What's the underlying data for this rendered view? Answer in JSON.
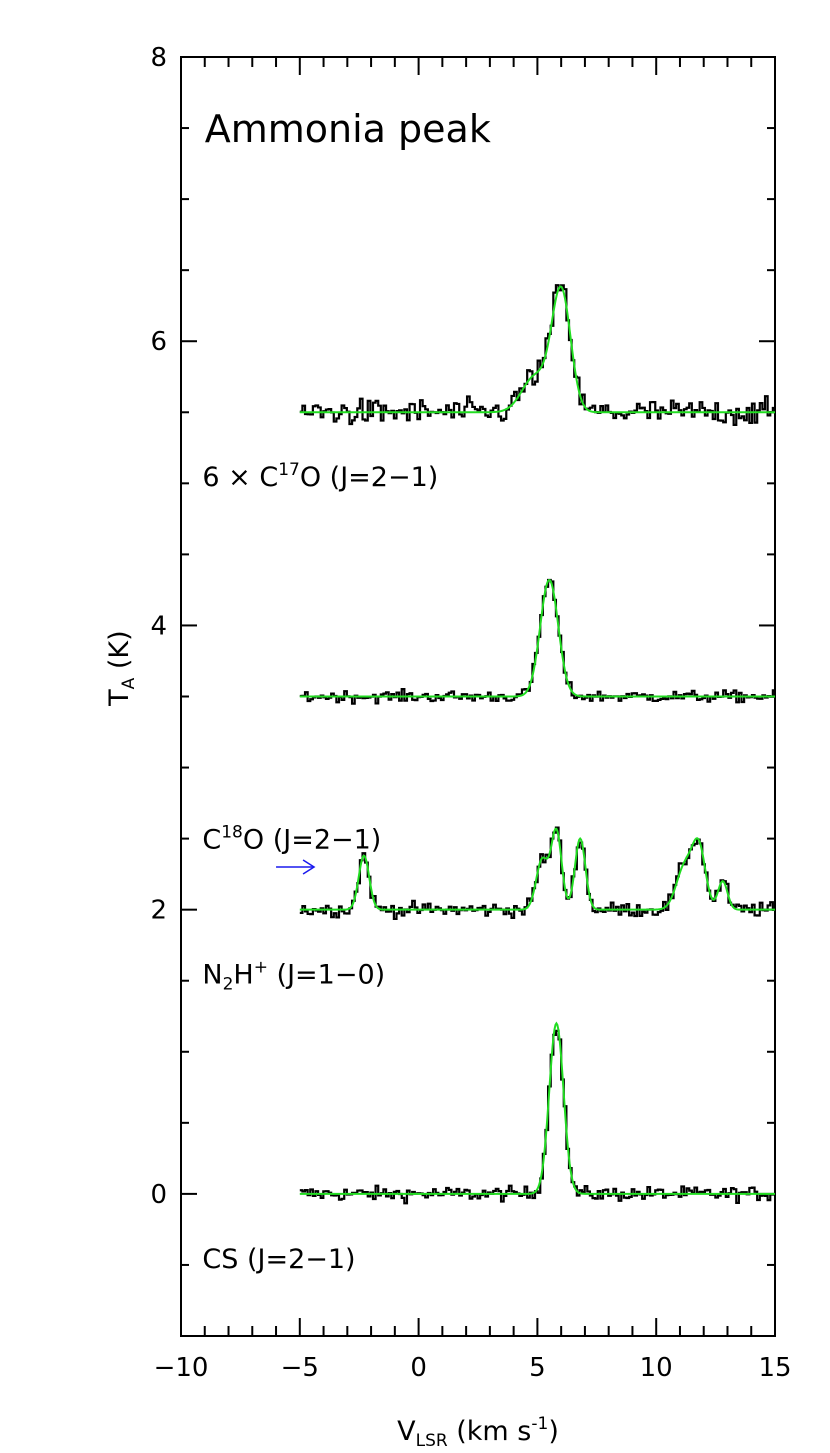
{
  "chart_data": {
    "type": "line",
    "title": "Ammonia peak",
    "xlabel": {
      "main": "V",
      "sub": "LSR",
      "unit_pre": " (km s",
      "unit_sup": "-1",
      "unit_post": ")"
    },
    "ylabel": {
      "main": "T",
      "sub": "A",
      "unit": " (K)"
    },
    "xlim": [
      -10,
      15
    ],
    "ylim": [
      -1,
      8
    ],
    "x_ticks": [
      -10,
      -5,
      0,
      5,
      10,
      15
    ],
    "x_tick_labels": [
      "−10",
      "−5",
      "0",
      "5",
      "10",
      "15"
    ],
    "y_ticks": [
      0,
      2,
      4,
      6,
      8
    ],
    "y_tick_labels": [
      "0",
      "2",
      "4",
      "6",
      "8"
    ],
    "grid": false,
    "series": [
      {
        "name": "CS (J=2−1)",
        "label": {
          "pre": "CS (J=2−1)"
        },
        "label_y": -0.45,
        "offset": 0.0,
        "noise": 0.05,
        "fit_color": "#22dd22",
        "gaussians": [
          {
            "center": 5.8,
            "amp": 1.2,
            "sigma": 0.3
          }
        ]
      },
      {
        "name": "N2H+ (J=1−0)",
        "label": {
          "pre": "N",
          "sub": "2",
          "mid": "H",
          "sup": "+",
          "post": " (J=1−0)"
        },
        "label_y": 1.55,
        "offset": 2.0,
        "noise": 0.05,
        "fit_color": "#22dd22",
        "gaussians": [
          {
            "center": -2.3,
            "amp": 0.38,
            "sigma": 0.22
          },
          {
            "center": 5.2,
            "amp": 0.35,
            "sigma": 0.25
          },
          {
            "center": 5.8,
            "amp": 0.55,
            "sigma": 0.22
          },
          {
            "center": 6.8,
            "amp": 0.5,
            "sigma": 0.22
          },
          {
            "center": 11.2,
            "amp": 0.3,
            "sigma": 0.35
          },
          {
            "center": 11.8,
            "amp": 0.42,
            "sigma": 0.28
          },
          {
            "center": 12.8,
            "amp": 0.2,
            "sigma": 0.2
          }
        ],
        "marker": {
          "x_start": -6.0,
          "x_end": -4.4,
          "y": 2.3,
          "color": "#1a1aee"
        }
      },
      {
        "name": "C18O (J=2−1)",
        "label": {
          "pre": "C",
          "sup": "18",
          "post": "O (J=2−1)"
        },
        "label_y": 2.5,
        "offset": 3.5,
        "noise": 0.04,
        "fit_color": "#22dd22",
        "gaussians": [
          {
            "center": 5.5,
            "amp": 0.82,
            "sigma": 0.38
          }
        ]
      },
      {
        "name": "6 × C17O (J=2−1)",
        "label": {
          "pre": "6 × C",
          "sup": "17",
          "post": "O (J=2−1)"
        },
        "label_y": 5.05,
        "offset": 5.5,
        "noise": 0.09,
        "fit_color": "#22dd22",
        "gaussians": [
          {
            "center": 4.9,
            "amp": 0.25,
            "sigma": 0.55
          },
          {
            "center": 6.0,
            "amp": 0.85,
            "sigma": 0.4
          }
        ]
      }
    ]
  }
}
